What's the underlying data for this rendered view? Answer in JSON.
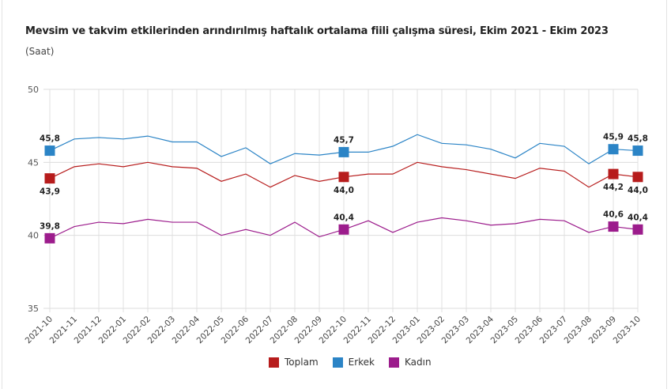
{
  "chart_data": {
    "type": "line",
    "title": "Mevsim ve takvim etkilerinden arındırılmış haftalık ortalama fiili çalışma süresi, Ekim 2021 - Ekim 2023",
    "subtitle": "(Saat)",
    "xlabel": "",
    "ylabel": "",
    "ylim": [
      35,
      50
    ],
    "yticks": [
      "35",
      "40",
      "45",
      "50"
    ],
    "grid": true,
    "legend": "bottom",
    "categories": [
      "2021-10",
      "2021-11",
      "2021-12",
      "2022-01",
      "2022-02",
      "2022-03",
      "2022-04",
      "2022-05",
      "2022-06",
      "2022-07",
      "2022-08",
      "2022-09",
      "2022-10",
      "2022-11",
      "2022-12",
      "2023-01",
      "2023-02",
      "2023-03",
      "2023-04",
      "2023-05",
      "2023-06",
      "2023-07",
      "2023-08",
      "2023-09",
      "2023-10"
    ],
    "series": [
      {
        "name": "Toplam",
        "color": "#b71c1c",
        "values": [
          43.9,
          44.7,
          44.9,
          44.7,
          45.0,
          44.7,
          44.6,
          43.7,
          44.2,
          43.3,
          44.1,
          43.7,
          44.0,
          44.2,
          44.2,
          45.0,
          44.7,
          44.5,
          44.2,
          43.9,
          44.6,
          44.4,
          43.3,
          44.2,
          44.0
        ],
        "labels": {
          "0": "43,9",
          "12": "44,0",
          "23": "44,2",
          "24": "44,0"
        },
        "label_pos": "below"
      },
      {
        "name": "Erkek",
        "color": "#2b84c6",
        "values": [
          45.8,
          46.6,
          46.7,
          46.6,
          46.8,
          46.4,
          46.4,
          45.4,
          46.0,
          44.9,
          45.6,
          45.5,
          45.7,
          45.7,
          46.1,
          46.9,
          46.3,
          46.2,
          45.9,
          45.3,
          46.3,
          46.1,
          44.9,
          45.9,
          45.8
        ],
        "labels": {
          "0": "45,8",
          "12": "45,7",
          "23": "45,9",
          "24": "45,8"
        },
        "label_pos": "above"
      },
      {
        "name": "Kadın",
        "color": "#9c1c8c",
        "values": [
          39.8,
          40.6,
          40.9,
          40.8,
          41.1,
          40.9,
          40.9,
          40.0,
          40.4,
          40.0,
          40.9,
          39.9,
          40.4,
          41.0,
          40.2,
          40.9,
          41.2,
          41.0,
          40.7,
          40.8,
          41.1,
          41.0,
          40.2,
          40.6,
          40.4
        ],
        "labels": {
          "0": "39,8",
          "12": "40,4",
          "23": "40,6",
          "24": "40,4"
        },
        "label_pos": "above"
      }
    ]
  }
}
